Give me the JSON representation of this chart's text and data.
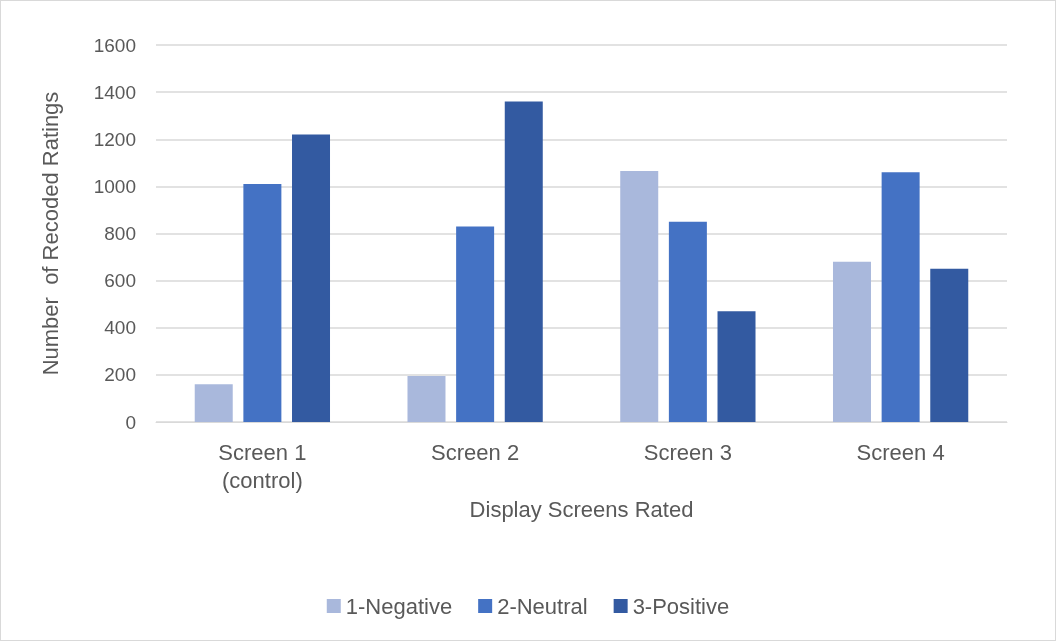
{
  "chart_data": {
    "type": "bar",
    "xlabel": "Display Screens Rated",
    "ylabel": "Number  of Recoded Ratings",
    "categories": [
      "Screen 1\n(control)",
      "Screen 2",
      "Screen 3",
      "Screen 4"
    ],
    "series": [
      {
        "name": "1-Negative",
        "color": "#a9b8dc",
        "values": [
          160,
          195,
          1065,
          680
        ]
      },
      {
        "name": "2-Neutral",
        "color": "#4472c4",
        "values": [
          1010,
          830,
          850,
          1060
        ]
      },
      {
        "name": "3-Positive",
        "color": "#335aa1",
        "values": [
          1220,
          1360,
          470,
          650
        ]
      }
    ],
    "ylim": [
      0,
      1600
    ],
    "yticks": [
      0,
      200,
      400,
      600,
      800,
      1000,
      1200,
      1400,
      1600
    ],
    "grid": "y",
    "legend": "bottom"
  }
}
